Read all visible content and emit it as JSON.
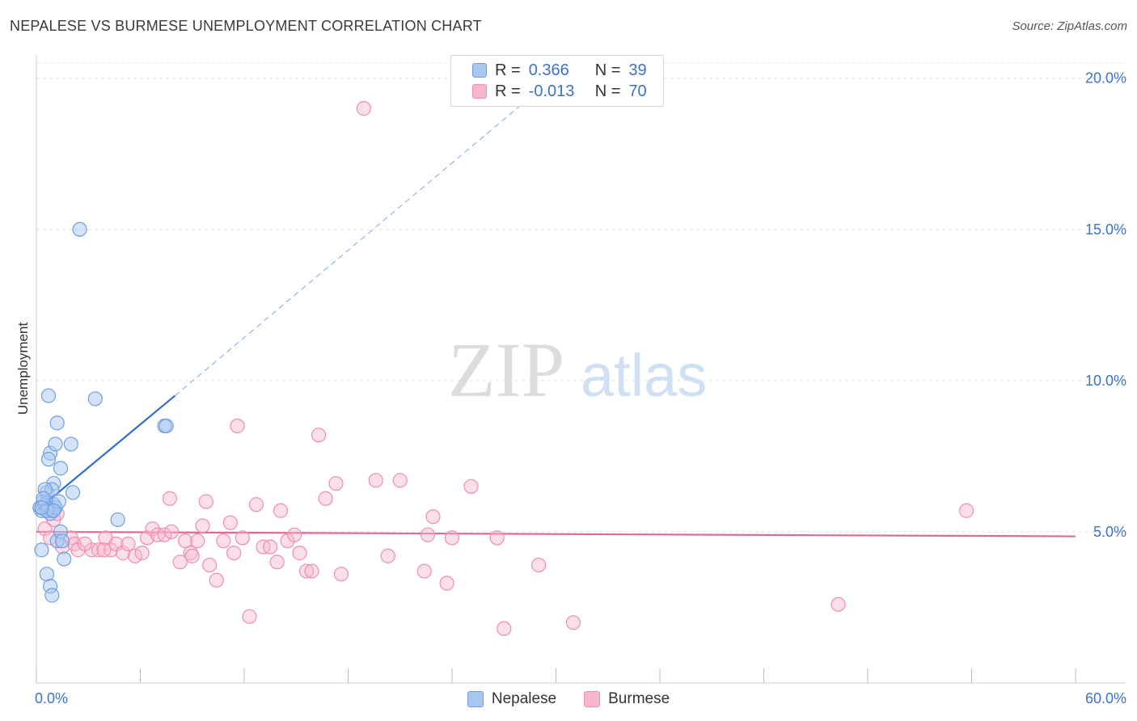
{
  "header": {
    "title": "NEPALESE VS BURMESE UNEMPLOYMENT CORRELATION CHART",
    "source": "Source: ZipAtlas.com"
  },
  "legend": {
    "nepalese": {
      "r_label": "R =",
      "r_value": "0.366",
      "n_label": "N =",
      "n_value": "39"
    },
    "burmese": {
      "r_label": "R =",
      "r_value": "-0.013",
      "n_label": "N =",
      "n_value": "70"
    }
  },
  "bottom_legend": {
    "nepalese": "Nepalese",
    "burmese": "Burmese"
  },
  "watermark": {
    "zip": "ZIP",
    "atlas": "atlas"
  },
  "colors": {
    "nepalese_fill": "#a9c8f0",
    "nepalese_stroke": "#6f9fe0",
    "nepalese_line": "#2f6fcf",
    "burmese_fill": "#f6b8cb",
    "burmese_stroke": "#ee8eab",
    "burmese_line": "#e06a92",
    "tick_label": "#3b73c9",
    "grid": "#e4e4e4"
  },
  "chart_data": {
    "type": "scatter",
    "title": "NEPALESE VS BURMESE UNEMPLOYMENT CORRELATION CHART",
    "xlabel": "",
    "ylabel": "Unemployment",
    "xlim": [
      0,
      60
    ],
    "ylim": [
      0,
      20.5
    ],
    "x_tick_labels": [
      "0.0%",
      "60.0%"
    ],
    "y_ticks": [
      5,
      10,
      15,
      20
    ],
    "y_tick_labels": [
      "5.0%",
      "10.0%",
      "15.0%",
      "20.0%"
    ],
    "series": [
      {
        "name": "Nepalese",
        "points": [
          [
            0.2,
            5.8
          ],
          [
            0.3,
            5.7
          ],
          [
            0.4,
            6.0
          ],
          [
            0.5,
            5.9
          ],
          [
            0.6,
            6.3
          ],
          [
            0.7,
            5.8
          ],
          [
            0.8,
            5.6
          ],
          [
            0.9,
            5.7
          ],
          [
            1.0,
            5.9
          ],
          [
            1.1,
            5.8
          ],
          [
            0.3,
            4.4
          ],
          [
            0.6,
            3.6
          ],
          [
            0.8,
            3.2
          ],
          [
            0.9,
            2.9
          ],
          [
            1.2,
            4.7
          ],
          [
            1.4,
            5.0
          ],
          [
            1.5,
            4.7
          ],
          [
            1.6,
            4.1
          ],
          [
            0.7,
            9.5
          ],
          [
            1.2,
            8.6
          ],
          [
            0.8,
            7.6
          ],
          [
            1.1,
            7.9
          ],
          [
            0.7,
            7.4
          ],
          [
            1.0,
            6.6
          ],
          [
            1.4,
            7.1
          ],
          [
            2.0,
            7.9
          ],
          [
            2.1,
            6.3
          ],
          [
            1.3,
            6.0
          ],
          [
            0.9,
            6.4
          ],
          [
            0.5,
            6.4
          ],
          [
            2.5,
            15.0
          ],
          [
            3.4,
            9.4
          ],
          [
            4.7,
            5.4
          ],
          [
            7.4,
            8.5
          ],
          [
            7.5,
            8.5
          ],
          [
            0.4,
            6.1
          ],
          [
            0.6,
            5.7
          ],
          [
            1.0,
            5.7
          ],
          [
            0.3,
            5.8
          ]
        ],
        "trend": {
          "x0": 0,
          "y0": 5.7,
          "x1": 8.0,
          "y1": 9.5,
          "dash_to_x": 29.0,
          "dash_to_y": 19.6
        }
      },
      {
        "name": "Burmese",
        "points": [
          [
            0.5,
            5.1
          ],
          [
            0.8,
            4.8
          ],
          [
            1.0,
            5.4
          ],
          [
            1.5,
            4.5
          ],
          [
            2.0,
            4.8
          ],
          [
            2.2,
            4.6
          ],
          [
            2.4,
            4.4
          ],
          [
            3.2,
            4.4
          ],
          [
            3.6,
            4.4
          ],
          [
            4.0,
            4.8
          ],
          [
            4.3,
            4.4
          ],
          [
            4.6,
            4.6
          ],
          [
            5.0,
            4.3
          ],
          [
            5.3,
            4.6
          ],
          [
            5.7,
            4.2
          ],
          [
            6.1,
            4.3
          ],
          [
            6.4,
            4.8
          ],
          [
            6.7,
            5.1
          ],
          [
            7.0,
            4.9
          ],
          [
            7.4,
            4.9
          ],
          [
            7.7,
            6.1
          ],
          [
            7.8,
            5.0
          ],
          [
            8.3,
            4.0
          ],
          [
            8.6,
            4.7
          ],
          [
            8.9,
            4.3
          ],
          [
            9.3,
            4.7
          ],
          [
            9.6,
            5.2
          ],
          [
            9.8,
            6.0
          ],
          [
            10.0,
            3.9
          ],
          [
            10.4,
            3.4
          ],
          [
            10.8,
            4.7
          ],
          [
            11.2,
            5.3
          ],
          [
            11.4,
            4.3
          ],
          [
            11.6,
            8.5
          ],
          [
            11.9,
            4.8
          ],
          [
            12.3,
            2.2
          ],
          [
            12.7,
            5.9
          ],
          [
            13.1,
            4.5
          ],
          [
            13.5,
            4.5
          ],
          [
            13.9,
            4.0
          ],
          [
            14.1,
            5.7
          ],
          [
            14.5,
            4.7
          ],
          [
            14.9,
            4.9
          ],
          [
            15.2,
            4.3
          ],
          [
            15.6,
            3.7
          ],
          [
            15.9,
            3.7
          ],
          [
            16.3,
            8.2
          ],
          [
            16.7,
            6.1
          ],
          [
            17.3,
            6.6
          ],
          [
            17.6,
            3.6
          ],
          [
            18.9,
            19.0
          ],
          [
            19.6,
            6.7
          ],
          [
            20.3,
            4.2
          ],
          [
            21.0,
            6.7
          ],
          [
            22.4,
            3.7
          ],
          [
            22.6,
            4.9
          ],
          [
            22.9,
            5.5
          ],
          [
            23.7,
            3.3
          ],
          [
            24.0,
            4.8
          ],
          [
            25.1,
            6.5
          ],
          [
            26.6,
            4.8
          ],
          [
            27.0,
            1.8
          ],
          [
            29.0,
            3.9
          ],
          [
            31.0,
            2.0
          ],
          [
            46.3,
            2.6
          ],
          [
            53.7,
            5.7
          ],
          [
            1.2,
            5.6
          ],
          [
            2.8,
            4.6
          ],
          [
            3.9,
            4.4
          ],
          [
            9.0,
            4.2
          ]
        ],
        "trend": {
          "x0": 0,
          "y0": 5.0,
          "x1": 60,
          "y1": 4.85
        }
      }
    ]
  }
}
